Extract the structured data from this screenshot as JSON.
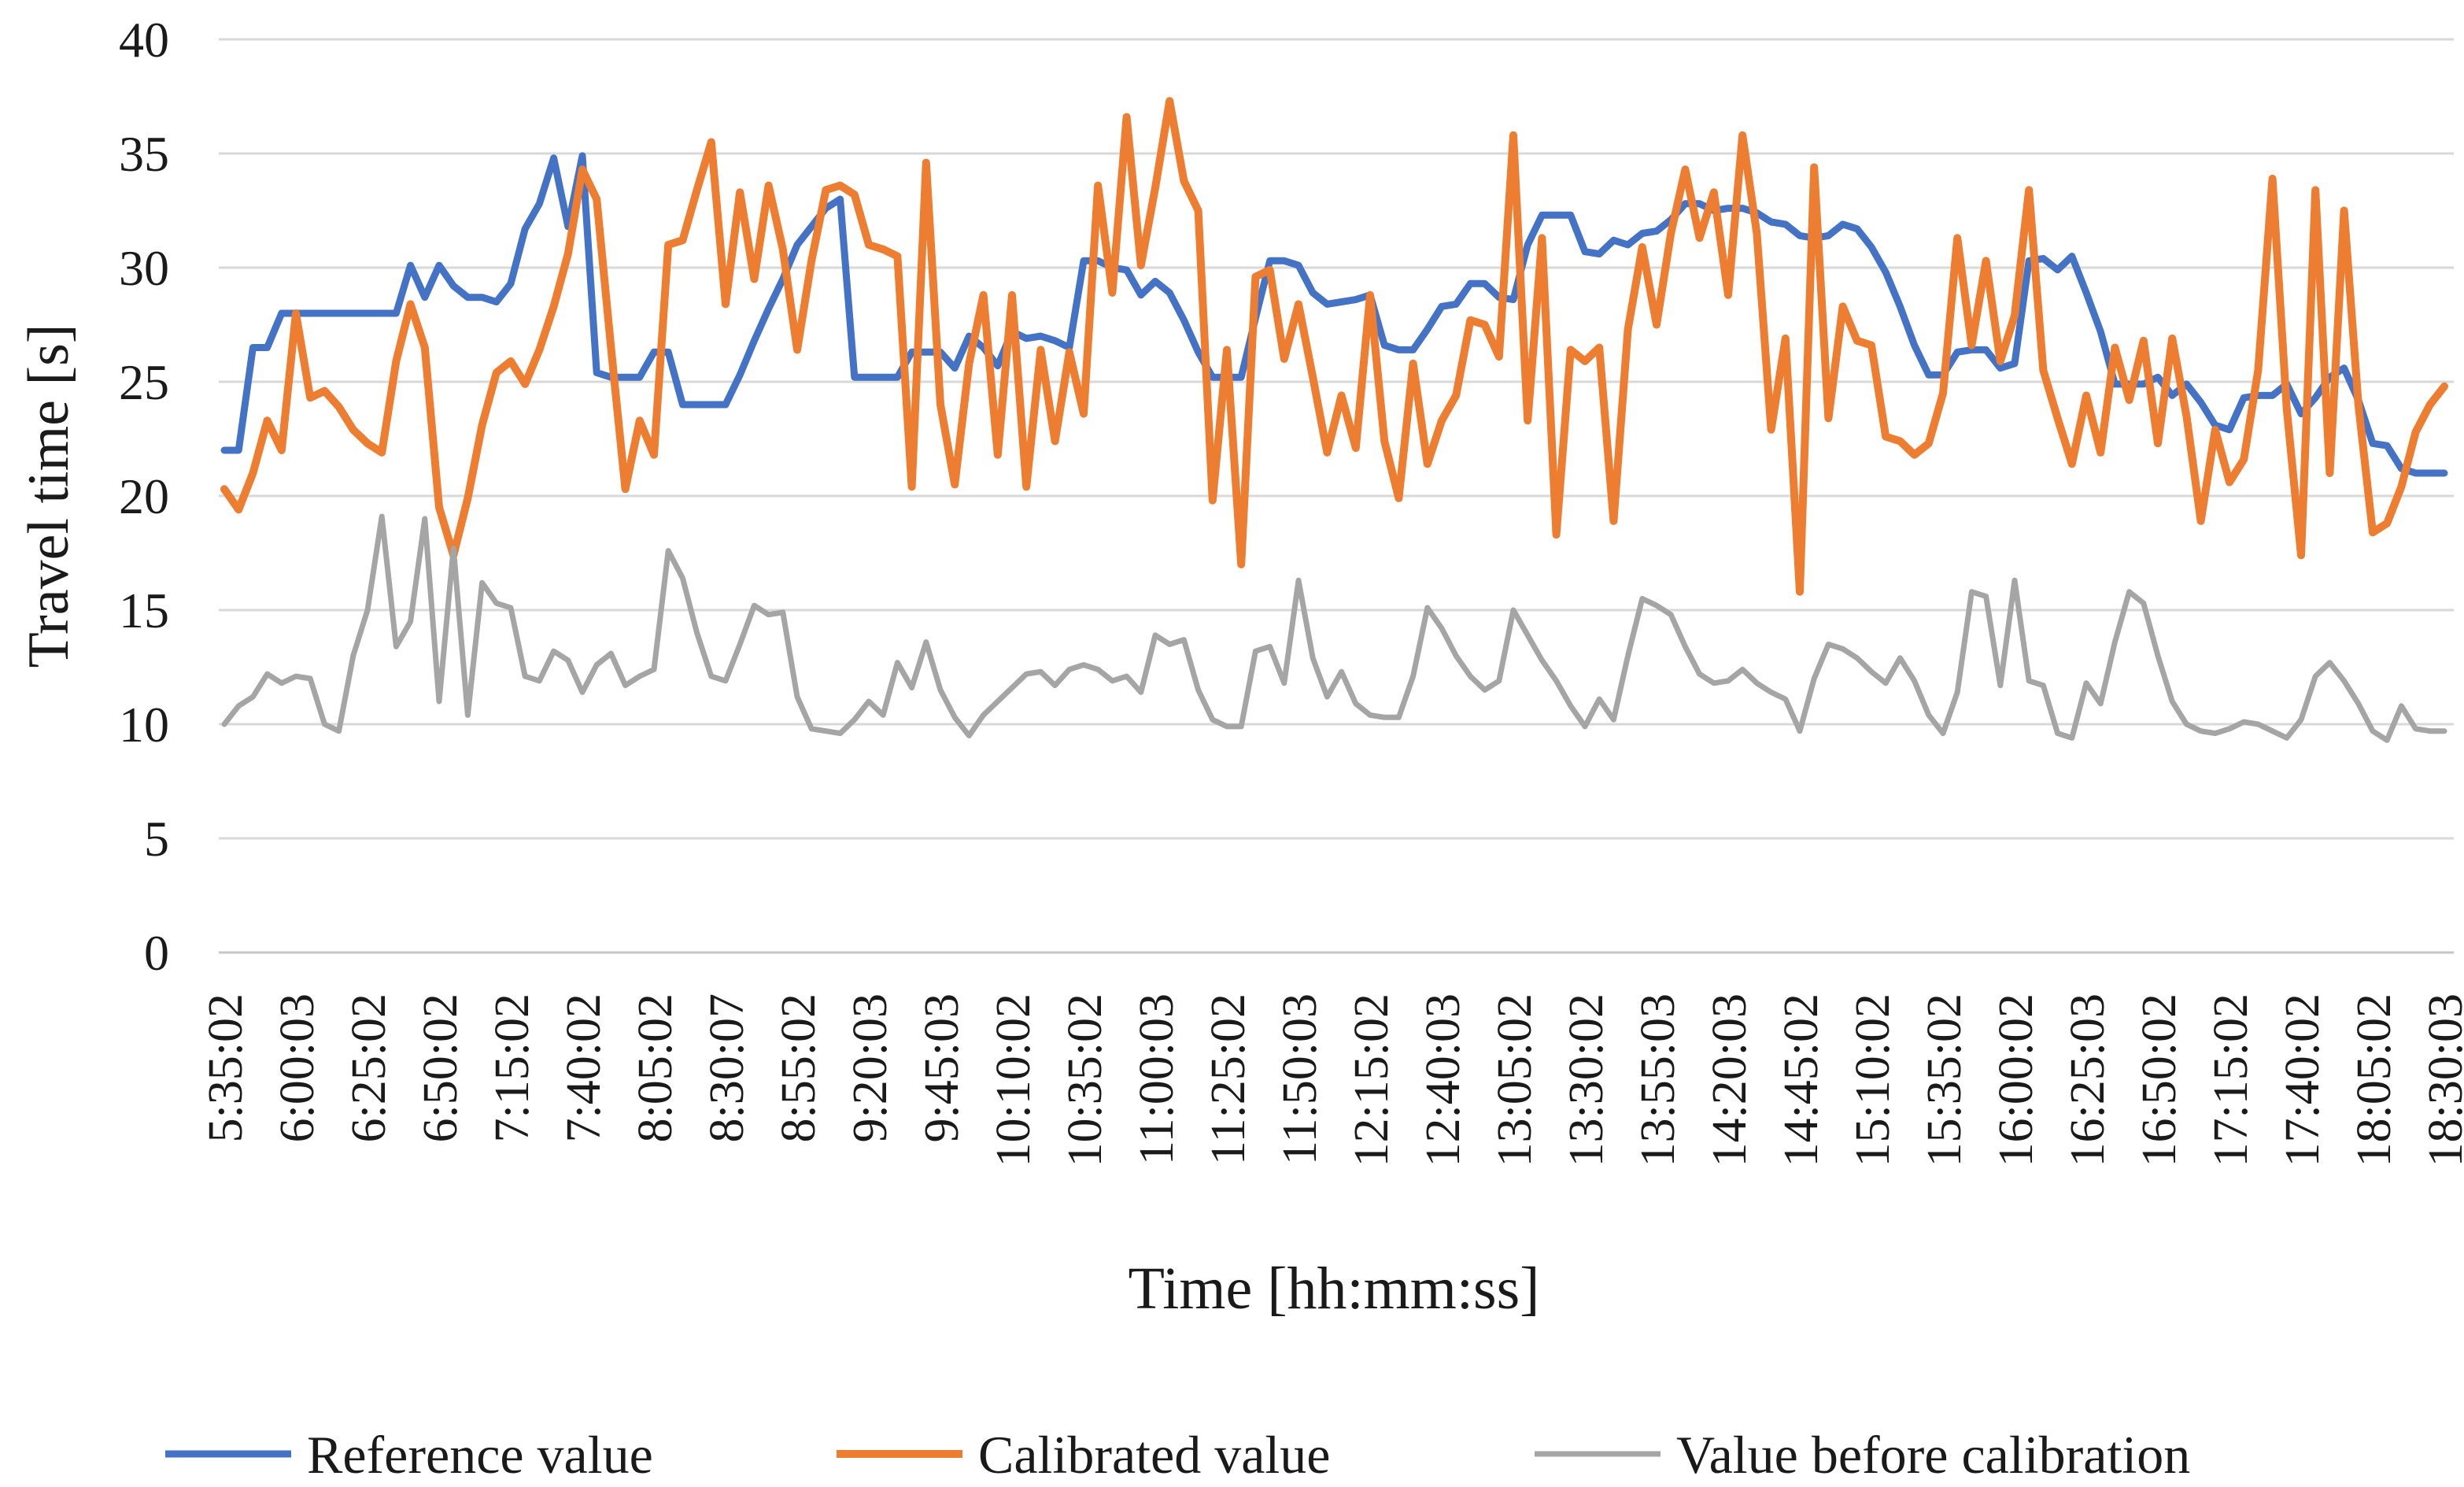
{
  "chart_data": {
    "type": "line",
    "title": "",
    "xlabel": "Time [hh:mm:ss]",
    "ylabel": "Travel time [s]",
    "ylim": [
      0,
      40
    ],
    "ytick_step": 5,
    "ytick_labels": [
      "0",
      "5",
      "10",
      "15",
      "20",
      "25",
      "30",
      "35",
      "40"
    ],
    "grid": true,
    "legend_position": "bottom",
    "x_tick_every": 5,
    "x_tick_labels": [
      "5:35:02",
      "6:00:03",
      "6:25:02",
      "6:50:02",
      "7:15:02",
      "7:40:02",
      "8:05:02",
      "8:30:07",
      "8:55:02",
      "9:20:03",
      "9:45:03",
      "10:10:02",
      "10:35:02",
      "11:00:03",
      "11:25:02",
      "11:50:03",
      "12:15:02",
      "12:40:03",
      "13:05:02",
      "13:30:02",
      "13:55:03",
      "14:20:03",
      "14:45:02",
      "15:10:02",
      "15:35:02",
      "16:00:02",
      "16:25:03",
      "16:50:02",
      "17:15:02",
      "17:40:02",
      "18:05:02",
      "18:30:03"
    ],
    "series": [
      {
        "name": "Reference value",
        "color": "#4472c4",
        "stroke_width": 9,
        "values": [
          22,
          22,
          26.5,
          26.5,
          28,
          28,
          28,
          28,
          28,
          28,
          28,
          28,
          28,
          30.1,
          28.7,
          30.1,
          29.2,
          28.7,
          28.7,
          28.5,
          29.3,
          31.7,
          32.8,
          34.8,
          31.8,
          34.9,
          25.4,
          25.2,
          25.2,
          25.2,
          26.3,
          26.3,
          24,
          24,
          24,
          24,
          25.3,
          26.8,
          28.2,
          29.5,
          31,
          31.8,
          32.6,
          33,
          25.2,
          25.2,
          25.2,
          25.2,
          26.3,
          26.3,
          26.3,
          25.6,
          27,
          26.5,
          25.7,
          27.2,
          26.9,
          27,
          26.8,
          26.5,
          30.3,
          30.3,
          30,
          29.9,
          28.8,
          29.4,
          28.9,
          27.7,
          26.3,
          25.2,
          25.2,
          25.2,
          27.8,
          30.3,
          30.3,
          30.1,
          28.9,
          28.4,
          28.5,
          28.6,
          28.8,
          26.6,
          26.4,
          26.4,
          27.3,
          28.3,
          28.4,
          29.3,
          29.3,
          28.7,
          28.6,
          31,
          32.3,
          32.3,
          32.3,
          30.7,
          30.6,
          31.2,
          31,
          31.5,
          31.6,
          32.1,
          32.8,
          32.8,
          32.5,
          32.6,
          32.6,
          32.4,
          32,
          31.9,
          31.4,
          31.3,
          31.4,
          31.9,
          31.7,
          30.9,
          29.8,
          28.3,
          26.6,
          25.3,
          25.3,
          26.3,
          26.4,
          26.4,
          25.6,
          25.8,
          30.3,
          30.4,
          29.9,
          30.5,
          28.9,
          27.2,
          24.9,
          24.9,
          24.9,
          25.2,
          24.4,
          24.9,
          24.1,
          23.1,
          22.9,
          24.3,
          24.4,
          24.4,
          24.9,
          23.6,
          24.3,
          25.2,
          25.6,
          24.2,
          22.3,
          22.2,
          21.2,
          21,
          21,
          21
        ]
      },
      {
        "name": "Calibrated value",
        "color": "#ed7d31",
        "stroke_width": 10,
        "values": [
          20.3,
          19.4,
          21,
          23.3,
          22,
          28,
          24.3,
          24.6,
          23.9,
          22.9,
          22.3,
          21.9,
          25.9,
          28.4,
          26.5,
          19.5,
          17.4,
          19.9,
          23.1,
          25.4,
          25.9,
          24.9,
          26.4,
          28.3,
          30.6,
          34.3,
          33,
          26.5,
          20.3,
          23.3,
          21.8,
          31,
          31.2,
          33.4,
          35.5,
          28.4,
          33.3,
          29.5,
          33.6,
          30.8,
          26.4,
          30.3,
          33.4,
          33.6,
          33.2,
          31,
          30.8,
          30.5,
          20.4,
          34.6,
          24,
          20.5,
          25.8,
          28.8,
          21.8,
          28.8,
          20.4,
          26.4,
          22.4,
          26.3,
          23.6,
          33.6,
          28.9,
          36.6,
          30.1,
          33.5,
          37.3,
          33.8,
          32.5,
          19.8,
          26.4,
          17,
          29.6,
          29.9,
          26,
          28.4,
          25.2,
          21.9,
          24.4,
          22.1,
          28.8,
          22.4,
          19.9,
          25.8,
          21.4,
          23.3,
          24.4,
          27.7,
          27.5,
          26.1,
          35.8,
          23.3,
          31.3,
          18.3,
          26.4,
          25.9,
          26.5,
          18.9,
          27.3,
          30.9,
          27.5,
          31.5,
          34.3,
          31.3,
          33.3,
          28.8,
          35.8,
          31.5,
          22.9,
          26.9,
          15.8,
          34.4,
          23.4,
          28.3,
          26.8,
          26.6,
          22.6,
          22.4,
          21.8,
          22.3,
          24.5,
          31.3,
          26.6,
          30.3,
          25.9,
          27.9,
          33.4,
          25.5,
          23.4,
          21.4,
          24.4,
          21.9,
          26.5,
          24.2,
          26.8,
          22.3,
          26.9,
          23.5,
          18.9,
          22.9,
          20.6,
          21.6,
          25.5,
          33.9,
          23.8,
          17.4,
          33.4,
          21,
          32.5,
          24,
          18.4,
          18.8,
          20.4,
          22.8,
          24,
          24.8
        ]
      },
      {
        "name": "Value before calibration",
        "color": "#a5a5a5",
        "stroke_width": 7,
        "values": [
          10,
          10.8,
          11.2,
          12.2,
          11.8,
          12.1,
          12,
          10,
          9.7,
          13,
          15,
          19.1,
          13.4,
          14.5,
          19,
          11,
          17.7,
          10.4,
          16.2,
          15.3,
          15.1,
          12.1,
          11.9,
          13.2,
          12.8,
          11.4,
          12.6,
          13.1,
          11.7,
          12.1,
          12.4,
          17.6,
          16.4,
          14,
          12.1,
          11.9,
          13.5,
          15.2,
          14.8,
          14.9,
          11.2,
          9.8,
          9.7,
          9.6,
          10.2,
          11,
          10.4,
          12.7,
          11.6,
          13.6,
          11.5,
          10.3,
          9.5,
          10.4,
          11,
          11.6,
          12.2,
          12.3,
          11.7,
          12.4,
          12.6,
          12.4,
          11.9,
          12.1,
          11.4,
          13.9,
          13.5,
          13.7,
          11.5,
          10.2,
          9.9,
          9.9,
          13.2,
          13.4,
          11.8,
          16.3,
          12.9,
          11.2,
          12.3,
          10.9,
          10.4,
          10.3,
          10.3,
          12.1,
          15.1,
          14.2,
          13,
          12.1,
          11.5,
          11.9,
          15,
          13.9,
          12.8,
          11.9,
          10.8,
          9.9,
          11.1,
          10.2,
          13,
          15.5,
          15.2,
          14.8,
          13.4,
          12.2,
          11.8,
          11.9,
          12.4,
          11.8,
          11.4,
          11.1,
          9.7,
          12,
          13.5,
          13.3,
          12.9,
          12.3,
          11.8,
          12.9,
          11.9,
          10.4,
          9.6,
          11.4,
          15.8,
          15.6,
          11.7,
          16.3,
          11.9,
          11.7,
          9.6,
          9.4,
          11.8,
          10.9,
          13.6,
          15.8,
          15.3,
          13,
          11,
          10,
          9.7,
          9.6,
          9.8,
          10.1,
          10,
          9.7,
          9.4,
          10.2,
          12.1,
          12.7,
          11.9,
          10.9,
          9.7,
          9.3,
          10.8,
          9.8,
          9.7,
          9.7
        ]
      }
    ]
  }
}
